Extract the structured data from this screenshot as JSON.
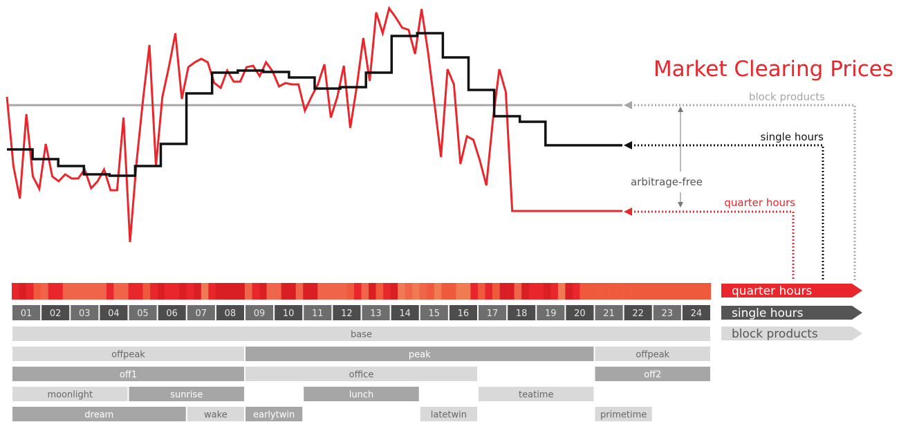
{
  "title": "Market Clearing Prices",
  "annotations": {
    "block_products": "block products",
    "single_hours": "single hours",
    "quarter_hours": "quarter hours",
    "arbitrage_free": "arbitrage-free"
  },
  "legend": {
    "quarter_hours": "quarter hours",
    "single_hours": "single hours",
    "block_products": "block products"
  },
  "colors": {
    "red": "#e8262b",
    "black": "#111111",
    "block_line": "#a6a6a6",
    "dark_cell": "#4d4d4d",
    "light_cell": "#6e6e6e",
    "block_light": "#d9d9d9",
    "block_dark": "#a6a6a6",
    "legend_single": "#555555",
    "legend_block": "#d9d9d9",
    "legend_block_text": "#555555"
  },
  "hours": [
    "01",
    "02",
    "03",
    "04",
    "05",
    "06",
    "07",
    "08",
    "09",
    "10",
    "11",
    "12",
    "13",
    "14",
    "15",
    "16",
    "17",
    "18",
    "19",
    "20",
    "21",
    "22",
    "23",
    "24"
  ],
  "block_rows": [
    [
      {
        "label": "base",
        "start": 0,
        "end": 24,
        "tone": "light"
      }
    ],
    [
      {
        "label": "offpeak",
        "start": 0,
        "end": 8,
        "tone": "light"
      },
      {
        "label": "peak",
        "start": 8,
        "end": 20,
        "tone": "dark"
      },
      {
        "label": "offpeak",
        "start": 20,
        "end": 24,
        "tone": "light"
      }
    ],
    [
      {
        "label": "off1",
        "start": 0,
        "end": 8,
        "tone": "dark"
      },
      {
        "label": "office",
        "start": 8,
        "end": 16,
        "tone": "light"
      },
      {
        "label": "off2",
        "start": 20,
        "end": 24,
        "tone": "dark"
      }
    ],
    [
      {
        "label": "moonlight",
        "start": 0,
        "end": 4,
        "tone": "light"
      },
      {
        "label": "sunrise",
        "start": 4,
        "end": 8,
        "tone": "dark"
      },
      {
        "label": "lunch",
        "start": 10,
        "end": 14,
        "tone": "dark"
      },
      {
        "label": "teatime",
        "start": 16,
        "end": 20,
        "tone": "light"
      }
    ],
    [
      {
        "label": "dream",
        "start": 0,
        "end": 6,
        "tone": "dark"
      },
      {
        "label": "wake",
        "start": 6,
        "end": 8,
        "tone": "light"
      },
      {
        "label": "earlytwin",
        "start": 8,
        "end": 10,
        "tone": "dark"
      },
      {
        "label": "latetwin",
        "start": 14,
        "end": 16,
        "tone": "light"
      },
      {
        "label": "primetime",
        "start": 20,
        "end": 22,
        "tone": "light"
      }
    ]
  ],
  "chart_data": {
    "type": "line",
    "x_unit": "quarter-hour index (0 = 00:00)",
    "block_level": 152,
    "single_hours": [
      216,
      230,
      240,
      252,
      254,
      240,
      208,
      135,
      105,
      102,
      104,
      112,
      128,
      126,
      105,
      52,
      48,
      83,
      130,
      168,
      176,
      210,
      210,
      210
    ],
    "quarter_hours": [
      140,
      240,
      287,
      165,
      255,
      273,
      208,
      255,
      262,
      252,
      258,
      258,
      245,
      272,
      262,
      245,
      275,
      275,
      170,
      350,
      235,
      145,
      65,
      240,
      140,
      97,
      48,
      143,
      97,
      90,
      85,
      90,
      120,
      127,
      102,
      118,
      118,
      97,
      95,
      110,
      90,
      103,
      125,
      120,
      122,
      122,
      160,
      140,
      122,
      93,
      170,
      140,
      95,
      185,
      125,
      55,
      117,
      18,
      48,
      12,
      25,
      40,
      43,
      78,
      13,
      75,
      150,
      227,
      100,
      122,
      237,
      197,
      202,
      232,
      268,
      175,
      100,
      133,
      305,
      305,
      305,
      305,
      305,
      305,
      305,
      305,
      305,
      305,
      305,
      305,
      305,
      305,
      305,
      305,
      305,
      305
    ],
    "y_scale": "pixel",
    "note_x_range": [
      0,
      96
    ]
  }
}
